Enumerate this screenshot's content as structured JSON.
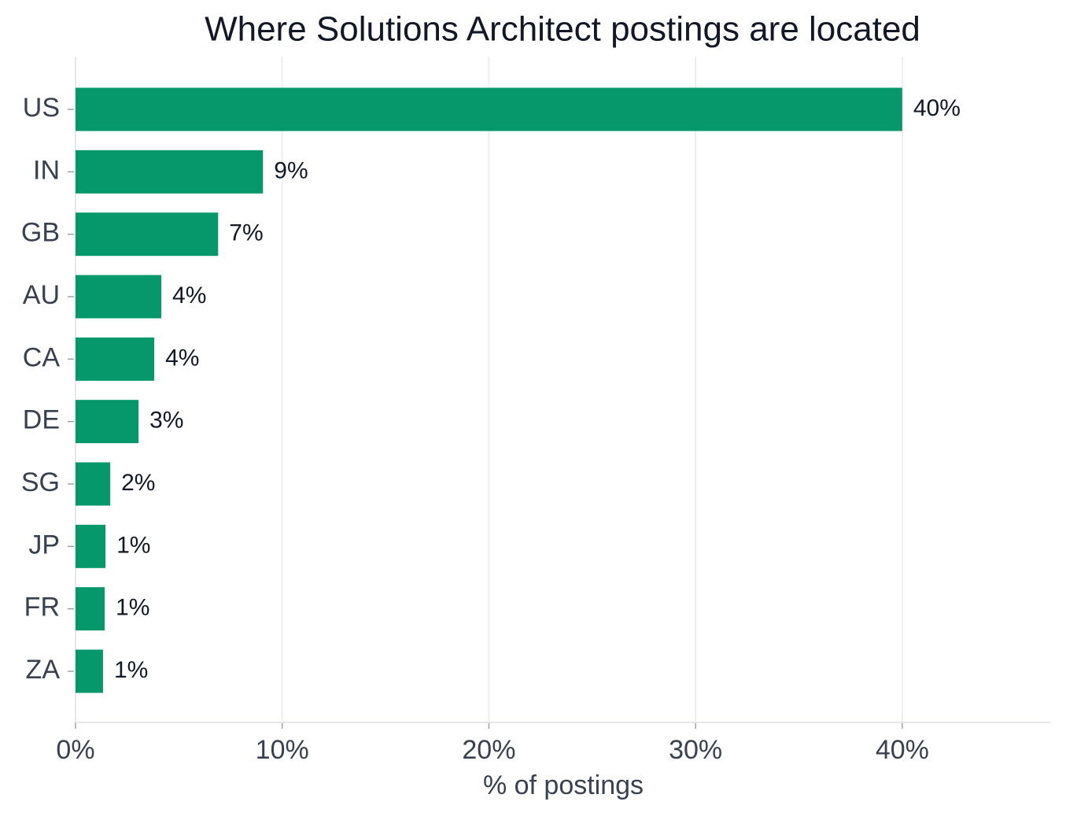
{
  "chart_data": {
    "type": "barh",
    "title": "Where Solutions Architect postings are located",
    "x_label": "% of postings",
    "categories": [
      "US",
      "IN",
      "GB",
      "AU",
      "CA",
      "DE",
      "SG",
      "JP",
      "FR",
      "ZA"
    ],
    "values": [
      40.0,
      9.07,
      6.9,
      4.15,
      3.81,
      3.05,
      1.68,
      1.45,
      1.41,
      1.33
    ],
    "value_labels": [
      "40%",
      "9%",
      "7%",
      "4%",
      "4%",
      "3%",
      "2%",
      "1%",
      "1%",
      "1%"
    ],
    "color": "#06976a",
    "xlim": [
      0,
      47.2
    ],
    "xticks": [
      {
        "value": 0,
        "label": "0%"
      },
      {
        "value": 10,
        "label": "10%"
      },
      {
        "value": 20,
        "label": "20%"
      },
      {
        "value": 30,
        "label": "30%"
      },
      {
        "value": 40,
        "label": "40%"
      }
    ],
    "grid": true
  }
}
